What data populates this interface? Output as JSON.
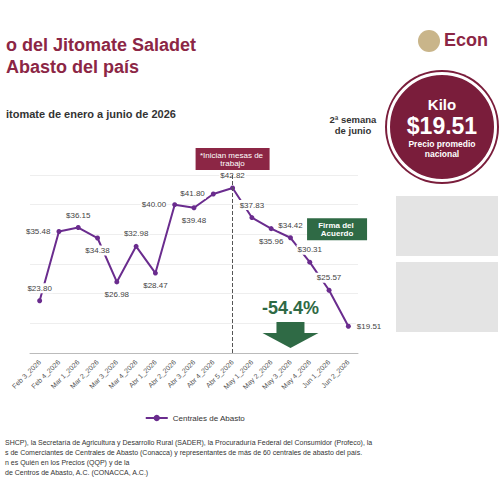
{
  "chart_data": {
    "type": "line",
    "title": [
      "o del Jitomate Saladet",
      "Abasto del país"
    ],
    "subtitle": "itomate de enero a junio de 2026",
    "categories": [
      "Feb 3_2026",
      "Feb 4_2026",
      "Mar 1_2026",
      "Mar 2_2026",
      "Mar 3_2026",
      "Mar 4_2026",
      "Abr 1_2026",
      "Abr 2_2026",
      "Abr 3_2026",
      "Abr 4_2026",
      "Abr 5_2026",
      "May 1_2026",
      "May 2_2026",
      "May 3_2026",
      "May 4_2026",
      "Jun 1_2026",
      "Jun 2_2026"
    ],
    "series": [
      {
        "name": "Centrales de Abasto",
        "color": "#6a2c8e",
        "marker": "circle",
        "values": [
          23.8,
          35.48,
          36.15,
          34.38,
          26.98,
          32.98,
          28.47,
          40.0,
          39.48,
          41.8,
          42.82,
          37.83,
          35.96,
          34.42,
          30.31,
          25.57,
          19.51
        ],
        "value_labels": [
          "$23.80",
          "$35.48",
          "$36.15",
          "$34.38",
          "$26.98",
          "$32.98",
          "$28.47",
          "$40.00",
          "$39.48",
          "$41.80",
          "$42.82",
          "$37.83",
          "$35.96",
          "$34.42",
          "$30.31",
          "$25.57",
          "$19.51"
        ]
      }
    ],
    "ylim": [
      15,
      45
    ],
    "yticks": [
      15,
      20,
      25,
      30,
      35,
      40,
      45
    ],
    "grid": true,
    "data_labels": true,
    "tick_labels": "x",
    "legend": "bottom",
    "annotations": {
      "start": {
        "text": "*Inician mesas de trabajo",
        "category": "Abr 5_2026"
      },
      "agreement": {
        "text": "Firma del Acuerdo",
        "category": "Jun 1_2026"
      },
      "change": {
        "text": "-54.4%",
        "category": "May 3_2026"
      },
      "callout": {
        "period": "2ª semana de junio",
        "unit": "Kilo",
        "price": "$19.51",
        "note": "Precio promedio nacional"
      },
      "logo": "Econ",
      "footer": [
        "SHCP), la Secretaría de Agricultura y Desarrollo Rural (SADER), la Procuraduría Federal del Consumidor (Profeco), la",
        "s de Comerciantes de Centrales de Abasto (Conacca) y representantes de más de 60 centrales de abasto del país.",
        "n es Quién en los Precios (QQP) y de la",
        "de Centros de Abasto, A.C. (CONACCA, A.C.)"
      ]
    }
  }
}
